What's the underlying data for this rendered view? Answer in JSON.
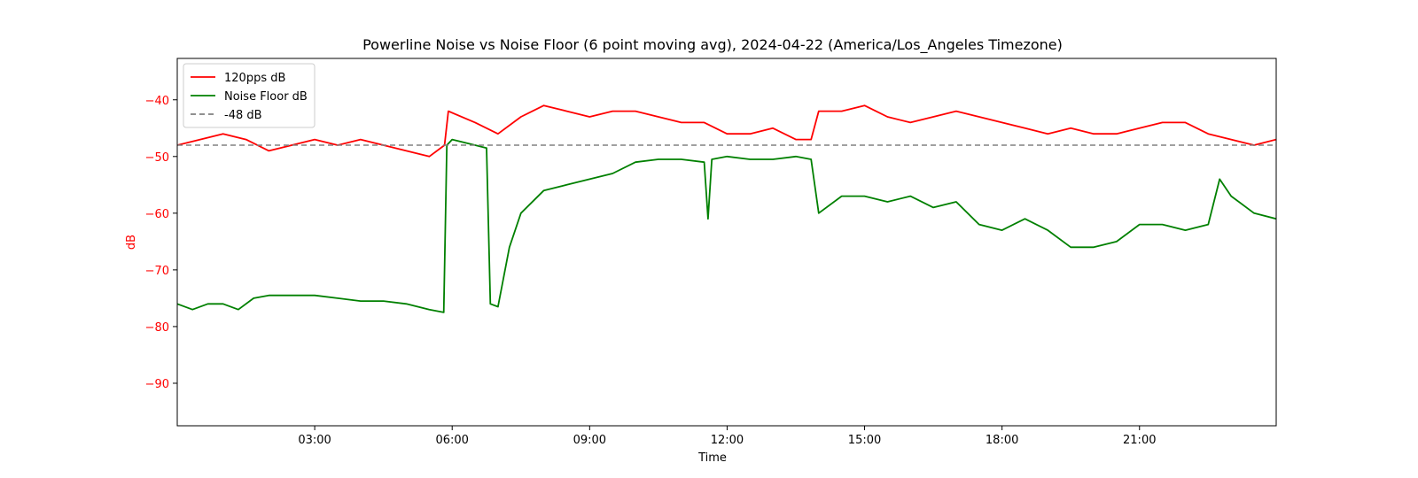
{
  "chart_data": {
    "type": "line",
    "title": "Powerline Noise vs Noise Floor (6 point moving avg), 2024-04-22 (America/Los_Angeles Timezone)",
    "xlabel": "Time",
    "ylabel": "dB",
    "ylabel_color": "#ff0000",
    "ytick_color": "#ff0000",
    "ylim": [
      -97.5,
      -32.7
    ],
    "xlim": [
      "00:00",
      "23:59"
    ],
    "yticks": [
      -40,
      -50,
      -60,
      -70,
      -80,
      -90
    ],
    "ytick_labels": [
      "−40",
      "−50",
      "−60",
      "−70",
      "−80",
      "−90"
    ],
    "xticks": [
      "03:00",
      "06:00",
      "09:00",
      "12:00",
      "15:00",
      "18:00",
      "21:00"
    ],
    "grid": false,
    "legend": "top-left",
    "series": [
      {
        "name": "120pps dB",
        "color": "#ff0000",
        "style": "solid",
        "x": [
          "00:00",
          "00:30",
          "01:00",
          "01:30",
          "02:00",
          "02:30",
          "03:00",
          "03:30",
          "04:00",
          "04:30",
          "05:00",
          "05:30",
          "05:50",
          "05:55",
          "06:30",
          "07:00",
          "07:30",
          "08:00",
          "08:30",
          "09:00",
          "09:30",
          "10:00",
          "10:30",
          "11:00",
          "11:30",
          "12:00",
          "12:30",
          "13:00",
          "13:30",
          "13:50",
          "14:00",
          "14:30",
          "15:00",
          "15:30",
          "16:00",
          "16:30",
          "17:00",
          "17:30",
          "18:00",
          "18:30",
          "19:00",
          "19:30",
          "20:00",
          "20:30",
          "21:00",
          "21:30",
          "22:00",
          "22:30",
          "23:00",
          "23:30",
          "23:59"
        ],
        "y": [
          -48,
          -47,
          -46,
          -47,
          -49,
          -48,
          -47,
          -48,
          -47,
          -48,
          -49,
          -50,
          -48,
          -42,
          -44,
          -46,
          -43,
          -41,
          -42,
          -43,
          -42,
          -42,
          -43,
          -44,
          -44,
          -46,
          -46,
          -45,
          -47,
          -47,
          -42,
          -42,
          -41,
          -43,
          -44,
          -43,
          -42,
          -43,
          -44,
          -45,
          -46,
          -45,
          -46,
          -46,
          -45,
          -44,
          -44,
          -46,
          -47,
          -48,
          -47
        ]
      },
      {
        "name": "Noise Floor dB",
        "color": "#008000",
        "style": "solid",
        "x": [
          "00:00",
          "00:20",
          "00:40",
          "01:00",
          "01:20",
          "01:40",
          "02:00",
          "02:30",
          "03:00",
          "03:30",
          "04:00",
          "04:30",
          "05:00",
          "05:30",
          "05:49",
          "05:53",
          "06:00",
          "06:30",
          "06:45",
          "06:50",
          "07:00",
          "07:15",
          "07:30",
          "08:00",
          "08:30",
          "09:00",
          "09:30",
          "10:00",
          "10:30",
          "11:00",
          "11:30",
          "11:35",
          "11:40",
          "12:00",
          "12:30",
          "13:00",
          "13:30",
          "13:50",
          "14:00",
          "14:30",
          "15:00",
          "15:30",
          "16:00",
          "16:30",
          "17:00",
          "17:30",
          "18:00",
          "18:30",
          "19:00",
          "19:30",
          "20:00",
          "20:30",
          "21:00",
          "21:30",
          "22:00",
          "22:30",
          "22:45",
          "23:00",
          "23:30",
          "23:59"
        ],
        "y": [
          -76,
          -77,
          -76,
          -76,
          -77,
          -75,
          -74.5,
          -74.5,
          -74.5,
          -75,
          -75.5,
          -75.5,
          -76,
          -77,
          -77.5,
          -48,
          -47,
          -48,
          -48.5,
          -76,
          -76.5,
          -66,
          -60,
          -56,
          -55,
          -54,
          -53,
          -51,
          -50.5,
          -50.5,
          -51,
          -61,
          -50.5,
          -50,
          -50.5,
          -50.5,
          -50,
          -50.5,
          -60,
          -57,
          -57,
          -58,
          -57,
          -59,
          -58,
          -62,
          -63,
          -61,
          -63,
          -66,
          -66,
          -65,
          -62,
          -62,
          -63,
          -62,
          -54,
          -57,
          -60,
          -61
        ]
      },
      {
        "name": "-48 dB",
        "color": "#808080",
        "style": "dashed",
        "x": [
          "00:00",
          "23:59"
        ],
        "y": [
          -48,
          -48
        ]
      }
    ]
  }
}
